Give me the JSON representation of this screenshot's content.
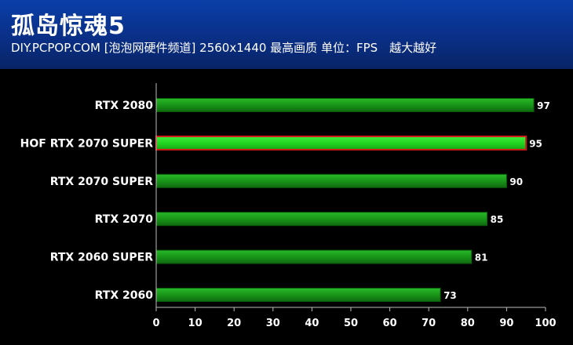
{
  "header": {
    "title": "孤岛惊魂5",
    "subtitle": "DIY.PCPOP.COM [泡泡网硬件频道] 2560x1440 最高画质 单位：FPS　越大越好"
  },
  "colors": {
    "header_bg": "#0a2f86",
    "bar_fill": "#1a9a1a",
    "bar_highlight_fill": "#22d622",
    "bar_highlight_border": "#d01818",
    "background": "#000000"
  },
  "chart_data": {
    "type": "bar",
    "orientation": "horizontal",
    "categories": [
      "RTX 2080",
      "HOF RTX 2070 SUPER",
      "RTX 2070 SUPER",
      "RTX 2070",
      "RTX 2060 SUPER",
      "RTX 2060"
    ],
    "values": [
      97,
      95,
      90,
      85,
      81,
      73
    ],
    "highlight_index": 1,
    "xlim": [
      0,
      100
    ],
    "xticks": [
      0,
      10,
      20,
      30,
      40,
      50,
      60,
      70,
      80,
      90,
      100
    ],
    "grid": false
  }
}
